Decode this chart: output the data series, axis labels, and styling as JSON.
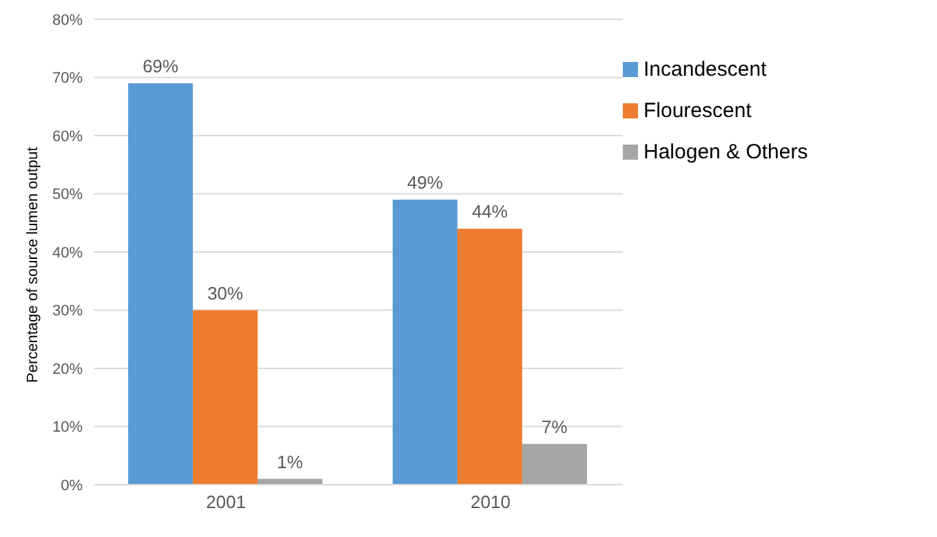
{
  "chart_data": {
    "type": "bar",
    "ylabel": "Percentage of source lumen output",
    "categories": [
      "2001",
      "2010"
    ],
    "series": [
      {
        "name": "Incandescent",
        "color": "#5b9bd5",
        "values": [
          69,
          49
        ],
        "value_labels": [
          "69%",
          "49%"
        ]
      },
      {
        "name": "Flourescent",
        "color": "#ed7d31",
        "values": [
          30,
          44
        ],
        "value_labels": [
          "30%",
          "44%"
        ]
      },
      {
        "name": "Halogen & Others",
        "color": "#a5a5a5",
        "values": [
          1,
          7
        ],
        "value_labels": [
          "1%",
          "7%"
        ]
      }
    ],
    "ylim": [
      0,
      80
    ],
    "yticks": [
      {
        "value": 0,
        "label": "0%"
      },
      {
        "value": 10,
        "label": "10%"
      },
      {
        "value": 20,
        "label": "20%"
      },
      {
        "value": 30,
        "label": "30%"
      },
      {
        "value": 40,
        "label": "40%"
      },
      {
        "value": 50,
        "label": "50%"
      },
      {
        "value": 60,
        "label": "60%"
      },
      {
        "value": 70,
        "label": "70%"
      },
      {
        "value": 80,
        "label": "80%"
      }
    ],
    "grid": "y",
    "legend": "right"
  }
}
